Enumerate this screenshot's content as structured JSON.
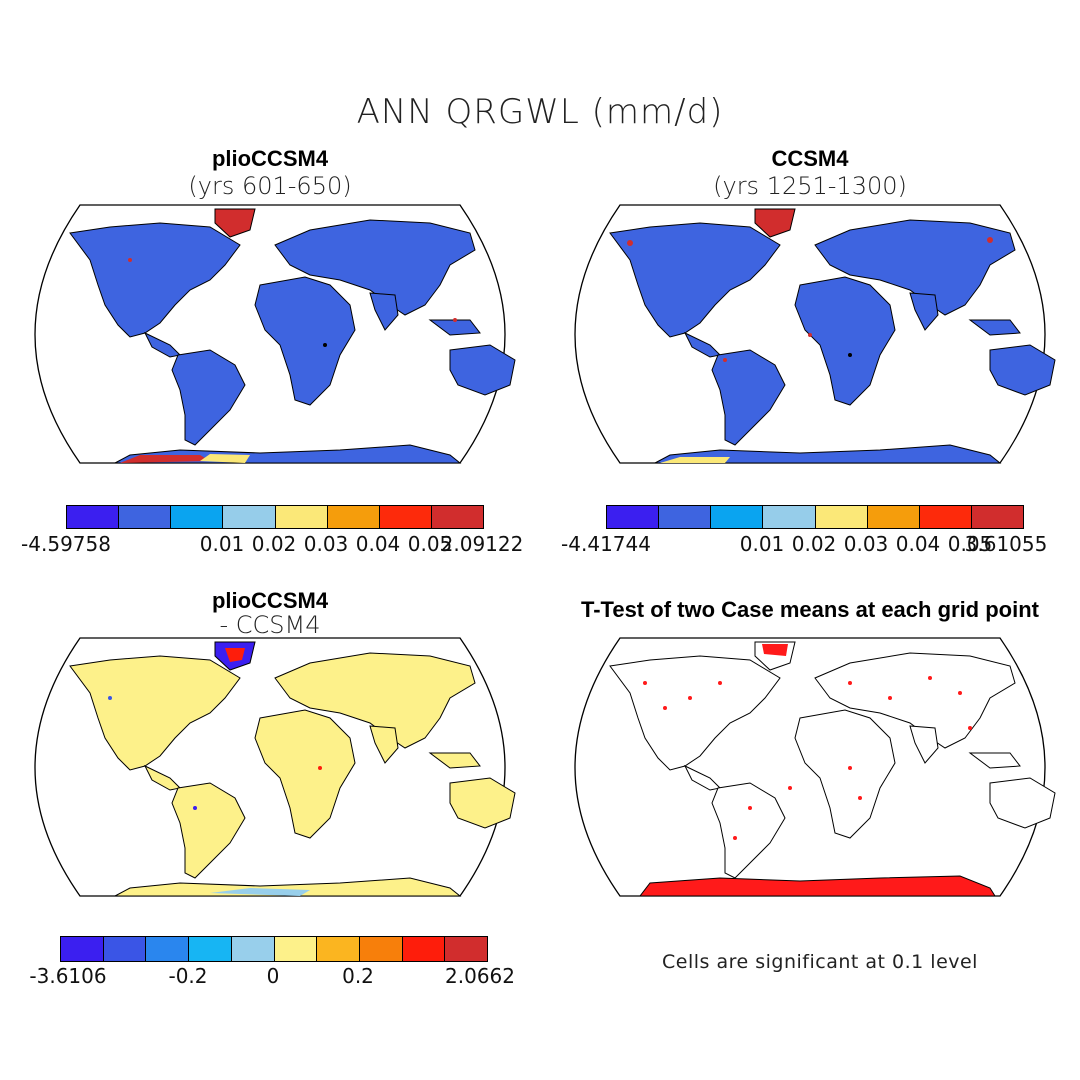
{
  "main_title": "ANN QRGWL (mm/d)",
  "panels": {
    "top_left": {
      "title": "plioCCSM4",
      "subtitle": "(yrs 601-650)"
    },
    "top_right": {
      "title": "CCSM4",
      "subtitle": "(yrs 1251-1300)"
    },
    "bottom_left": {
      "title": "plioCCSM4",
      "subtitle": "- CCSM4"
    },
    "bottom_right": {
      "title": "T-Test of two Case means at each grid point",
      "note": "Cells are significant at 0.1 level"
    }
  },
  "colorbars": {
    "top_left": {
      "colors": [
        "#3b1ff0",
        "#3e64e0",
        "#0aa4f0",
        "#96cdea",
        "#fbe878",
        "#f59d0c",
        "#fd2a0b",
        "#d12d2d"
      ],
      "labels": [
        "-4.59758",
        "0.01",
        "0.02",
        "0.03",
        "0.04",
        "0.05",
        "2.09122"
      ]
    },
    "top_right": {
      "colors": [
        "#3b1ff0",
        "#3e64e0",
        "#0aa4f0",
        "#96cdea",
        "#fbe878",
        "#f59d0c",
        "#fd2a0b",
        "#d12d2d"
      ],
      "labels": [
        "-4.41744",
        "0.01",
        "0.02",
        "0.03",
        "0.04",
        "0.05",
        "3.61055"
      ]
    },
    "bottom_left": {
      "colors": [
        "#3b1ff0",
        "#3a55e6",
        "#2a86ee",
        "#17b5f3",
        "#98cfeb",
        "#fdf18a",
        "#fbb520",
        "#f77f0b",
        "#fe1d0b",
        "#d12d2d"
      ],
      "labels": [
        "-3.6106",
        "-0.2",
        "0",
        "0.2",
        "2.0662"
      ]
    }
  },
  "map_colors": {
    "land_top": "#3e64e0",
    "land_diff": "#fdf18a",
    "ocean": "#ffffff",
    "high": "#d12d2d",
    "significant": "#ff1a1a"
  }
}
